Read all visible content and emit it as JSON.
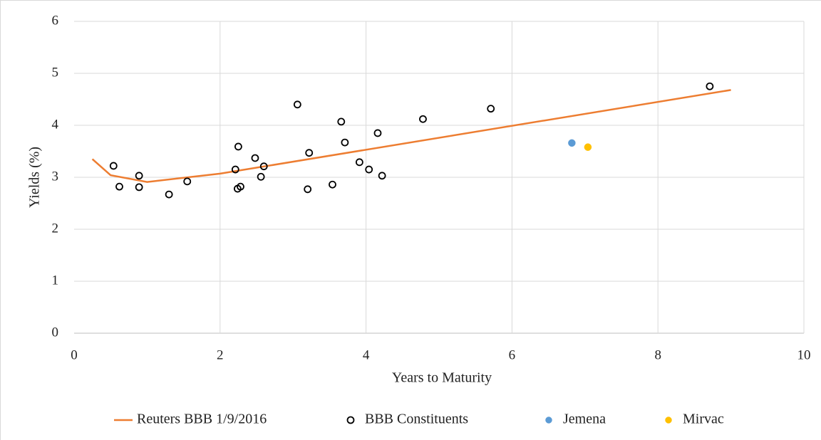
{
  "chart_data": {
    "type": "scatter",
    "x_label": "Years to Maturity",
    "y_label": "Yields (%)",
    "xlim": [
      0,
      10
    ],
    "xticks": [
      0,
      2,
      4,
      6,
      8,
      10
    ],
    "ylim": [
      0,
      6
    ],
    "yticks": [
      0,
      1,
      2,
      3,
      4,
      5,
      6
    ],
    "grid": true,
    "legend": "bottom",
    "series": [
      {
        "name": "Reuters BBB 1/9/2016",
        "color": "#ed7d31",
        "mode": "line",
        "x": [
          0.25,
          0.5,
          1,
          2,
          9
        ],
        "values": [
          3.35,
          3.04,
          2.91,
          3.07,
          4.68
        ]
      },
      {
        "name": "BBB Constituents",
        "color": "#000000",
        "mode": "hollow",
        "x": [
          0.54,
          0.62,
          0.89,
          0.89,
          1.3,
          1.55,
          2.21,
          2.25,
          2.24,
          2.28,
          2.48,
          2.56,
          2.6,
          3.06,
          3.22,
          3.2,
          3.54,
          3.66,
          3.71,
          3.91,
          4.04,
          4.16,
          4.22,
          4.78,
          5.71,
          8.71
        ],
        "values": [
          3.22,
          2.82,
          3.03,
          2.81,
          2.67,
          2.92,
          3.15,
          3.59,
          2.78,
          2.82,
          3.37,
          3.01,
          3.21,
          4.4,
          3.47,
          2.77,
          2.86,
          4.07,
          3.67,
          3.29,
          3.15,
          3.85,
          3.03,
          4.12,
          4.32,
          4.75
        ]
      },
      {
        "name": "Jemena",
        "color": "#5b9bd5",
        "mode": "filled",
        "x": [
          6.82
        ],
        "values": [
          3.66
        ]
      },
      {
        "name": "Mirvac",
        "color": "#ffc000",
        "mode": "filled",
        "x": [
          7.04
        ],
        "values": [
          3.58
        ]
      }
    ]
  }
}
